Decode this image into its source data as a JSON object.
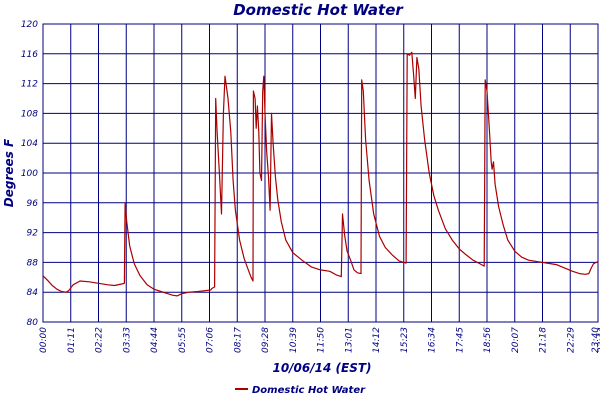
{
  "chart_data": {
    "type": "line",
    "title": "Domestic Hot Water",
    "xlabel": "10/06/14 (EST)",
    "ylabel": "Degrees F",
    "ylim": [
      80,
      120
    ],
    "xlim_hours": [
      0,
      24
    ],
    "y_ticks": [
      "80",
      "84",
      "88",
      "92",
      "96",
      "100",
      "104",
      "108",
      "112",
      "116",
      "120"
    ],
    "x_ticks": [
      "00:00",
      "01:11",
      "02:22",
      "03:33",
      "04:44",
      "05:55",
      "07:06",
      "08:17",
      "09:28",
      "10:39",
      "11:50",
      "13:01",
      "14:12",
      "15:23",
      "16:34",
      "17:45",
      "18:56",
      "20:07",
      "21:18",
      "22:29",
      "23:40",
      "23:44"
    ],
    "grid": true,
    "legend_position": "bottom-center",
    "line_color": "#aa0000",
    "grid_color": "#000080",
    "series": [
      {
        "name": "Domestic Hot Water",
        "points": [
          [
            0.0,
            86.2
          ],
          [
            0.2,
            85.6
          ],
          [
            0.4,
            84.9
          ],
          [
            0.6,
            84.4
          ],
          [
            0.8,
            84.1
          ],
          [
            1.0,
            84.0
          ],
          [
            1.11,
            84.2
          ],
          [
            1.3,
            85.0
          ],
          [
            1.6,
            85.5
          ],
          [
            2.0,
            85.4
          ],
          [
            2.4,
            85.2
          ],
          [
            2.8,
            85.0
          ],
          [
            3.1,
            84.9
          ],
          [
            3.4,
            85.1
          ],
          [
            3.52,
            85.2
          ],
          [
            3.55,
            96.0
          ],
          [
            3.62,
            93.5
          ],
          [
            3.75,
            90.2
          ],
          [
            3.95,
            87.8
          ],
          [
            4.2,
            86.2
          ],
          [
            4.5,
            85.0
          ],
          [
            4.8,
            84.4
          ],
          [
            5.1,
            84.1
          ],
          [
            5.4,
            83.8
          ],
          [
            5.6,
            83.6
          ],
          [
            5.8,
            83.5
          ],
          [
            6.0,
            83.8
          ],
          [
            6.3,
            84.0
          ],
          [
            6.7,
            84.1
          ],
          [
            7.0,
            84.2
          ],
          [
            7.25,
            84.3
          ],
          [
            7.3,
            84.5
          ],
          [
            7.42,
            84.7
          ],
          [
            7.47,
            110.0
          ],
          [
            7.53,
            105.5
          ],
          [
            7.63,
            100.0
          ],
          [
            7.72,
            94.5
          ],
          [
            7.8,
            108.0
          ],
          [
            7.87,
            113.0
          ],
          [
            8.0,
            110.0
          ],
          [
            8.12,
            105.5
          ],
          [
            8.22,
            99.0
          ],
          [
            8.32,
            95.0
          ],
          [
            8.5,
            91.0
          ],
          [
            8.7,
            88.5
          ],
          [
            8.9,
            86.8
          ],
          [
            9.0,
            86.0
          ],
          [
            9.08,
            85.5
          ],
          [
            9.1,
            111.0
          ],
          [
            9.17,
            110.0
          ],
          [
            9.22,
            106.0
          ],
          [
            9.27,
            109.0
          ],
          [
            9.33,
            105.5
          ],
          [
            9.38,
            100.0
          ],
          [
            9.45,
            99.0
          ],
          [
            9.5,
            111.0
          ],
          [
            9.55,
            113.0
          ],
          [
            9.6,
            108.0
          ],
          [
            9.67,
            103.0
          ],
          [
            9.75,
            99.5
          ],
          [
            9.82,
            95.0
          ],
          [
            9.88,
            108.0
          ],
          [
            9.95,
            104.0
          ],
          [
            10.05,
            99.5
          ],
          [
            10.15,
            96.5
          ],
          [
            10.3,
            93.5
          ],
          [
            10.5,
            91.0
          ],
          [
            10.8,
            89.3
          ],
          [
            11.2,
            88.3
          ],
          [
            11.6,
            87.4
          ],
          [
            12.0,
            87.0
          ],
          [
            12.4,
            86.8
          ],
          [
            12.7,
            86.3
          ],
          [
            12.9,
            86.1
          ],
          [
            12.95,
            94.5
          ],
          [
            13.05,
            91.5
          ],
          [
            13.15,
            89.5
          ],
          [
            13.3,
            88.3
          ],
          [
            13.45,
            87.0
          ],
          [
            13.6,
            86.6
          ],
          [
            13.75,
            86.5
          ],
          [
            13.78,
            112.5
          ],
          [
            13.85,
            111.0
          ],
          [
            13.95,
            104.5
          ],
          [
            14.1,
            99.0
          ],
          [
            14.3,
            94.5
          ],
          [
            14.55,
            91.5
          ],
          [
            14.8,
            90.0
          ],
          [
            15.1,
            89.0
          ],
          [
            15.4,
            88.2
          ],
          [
            15.6,
            88.0
          ],
          [
            15.7,
            87.9
          ],
          [
            15.75,
            116.0
          ],
          [
            15.85,
            115.8
          ],
          [
            15.95,
            116.2
          ],
          [
            16.03,
            113.0
          ],
          [
            16.1,
            110.0
          ],
          [
            16.17,
            115.5
          ],
          [
            16.25,
            114.0
          ],
          [
            16.35,
            109.0
          ],
          [
            16.5,
            104.5
          ],
          [
            16.7,
            100.0
          ],
          [
            16.9,
            97.0
          ],
          [
            17.1,
            95.0
          ],
          [
            17.4,
            92.5
          ],
          [
            17.7,
            91.0
          ],
          [
            18.0,
            89.8
          ],
          [
            18.3,
            89.0
          ],
          [
            18.6,
            88.3
          ],
          [
            18.9,
            87.8
          ],
          [
            19.08,
            87.5
          ],
          [
            19.12,
            112.5
          ],
          [
            19.2,
            111.0
          ],
          [
            19.3,
            106.0
          ],
          [
            19.38,
            101.5
          ],
          [
            19.42,
            100.5
          ],
          [
            19.48,
            101.5
          ],
          [
            19.55,
            98.5
          ],
          [
            19.7,
            95.5
          ],
          [
            19.9,
            93.0
          ],
          [
            20.1,
            91.0
          ],
          [
            20.4,
            89.5
          ],
          [
            20.7,
            88.7
          ],
          [
            21.0,
            88.3
          ],
          [
            21.4,
            88.1
          ],
          [
            21.8,
            87.9
          ],
          [
            22.2,
            87.7
          ],
          [
            22.6,
            87.2
          ],
          [
            22.9,
            86.8
          ],
          [
            23.2,
            86.5
          ],
          [
            23.45,
            86.4
          ],
          [
            23.6,
            86.5
          ],
          [
            23.7,
            87.2
          ],
          [
            23.8,
            87.8
          ],
          [
            23.92,
            88.0
          ],
          [
            24.0,
            88.1
          ]
        ]
      }
    ]
  }
}
